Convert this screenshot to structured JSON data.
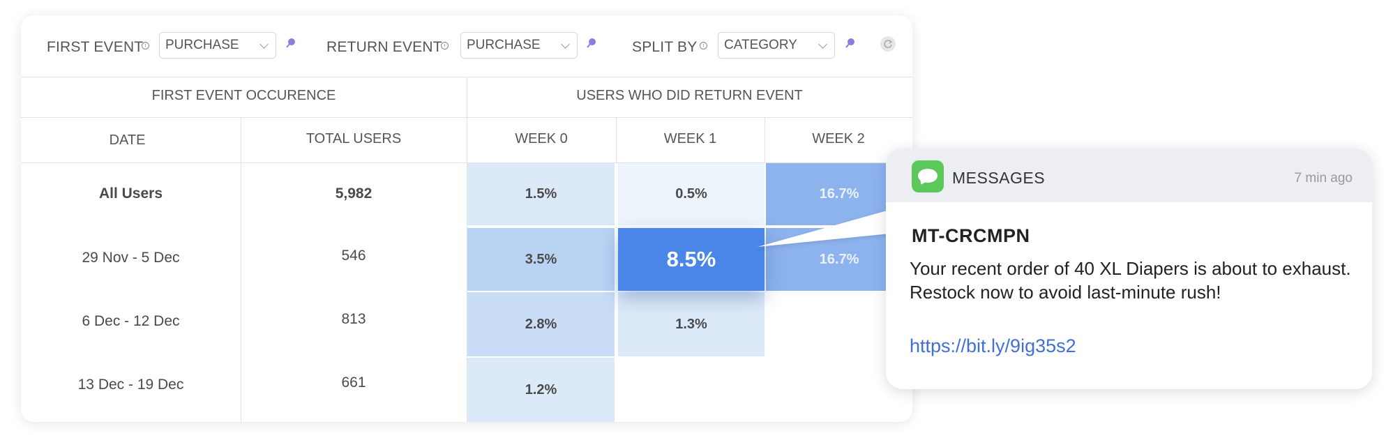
{
  "filters": {
    "first_event_label": "FIRST EVENT",
    "first_event_value": "PURCHASE",
    "return_event_label": "RETURN EVENT",
    "return_event_value": "PURCHASE",
    "split_by_label": "SPLIT BY",
    "split_by_value": "CATEGORY"
  },
  "table": {
    "group_left": "FIRST EVENT OCCURENCE",
    "group_right": "USERS WHO DID RETURN EVENT",
    "col_date": "DATE",
    "col_total": "TOTAL USERS",
    "col_week0": "WEEK 0",
    "col_week1": "WEEK 1",
    "col_week2": "WEEK 2",
    "rows": [
      {
        "date": "All Users",
        "total": "5,982",
        "w0": "1.5%",
        "w1": "0.5%",
        "w2": "16.7%"
      },
      {
        "date": "29 Nov - 5 Dec",
        "total": "546",
        "w0": "3.5%",
        "w1": "8.5%",
        "w2": "16.7%"
      },
      {
        "date": "6 Dec - 12 Dec",
        "total": "813",
        "w0": "2.8%",
        "w1": "1.3%",
        "w2": ""
      },
      {
        "date": "13 Dec - 19 Dec",
        "total": "661",
        "w0": "1.2%",
        "w1": "",
        "w2": ""
      }
    ]
  },
  "notification": {
    "app": "MESSAGES",
    "time": "7 min ago",
    "sender": "MT-CRCMPN",
    "body": "Your recent order of 40 XL Diapers is about to exhaust. Restock now to avoid last-minute rush!",
    "link": "https://bit.ly/9ig35s2"
  },
  "colors": {
    "accent": "#4a86e8",
    "heat_light": "#dce9f8",
    "heat_lighter": "#eef4fc",
    "heat_mid": "#b9d4f3",
    "heat_strong": "#8db3ee",
    "link": "#3f6fd8",
    "messages_icon": "#5cc85c"
  },
  "icons": [
    "info-icon",
    "pin-icon",
    "chevron-down-icon",
    "refresh-icon",
    "messages-app-icon"
  ]
}
